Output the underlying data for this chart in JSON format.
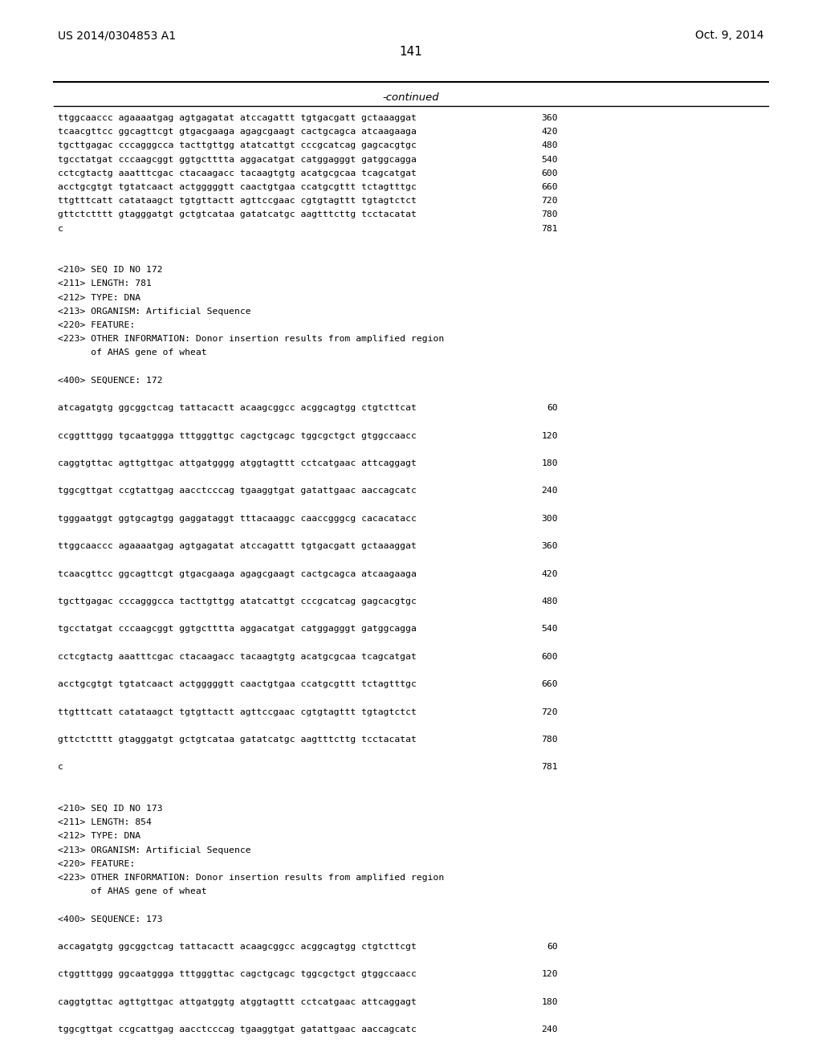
{
  "bg_color": "#ffffff",
  "header_left": "US 2014/0304853 A1",
  "header_right": "Oct. 9, 2014",
  "page_number": "141",
  "continued_text": "-continued",
  "lines": [
    {
      "text": "ttggcaaccc agaaaatgag agtgagatat atccagattt tgtgacgatt gctaaaggat",
      "num": "360",
      "type": "seq"
    },
    {
      "text": "tcaacgttcc ggcagttcgt gtgacgaaga agagcgaagt cactgcagca atcaagaaga",
      "num": "420",
      "type": "seq"
    },
    {
      "text": "tgcttgagac cccagggcca tacttgttgg atatcattgt cccgcatcag gagcacgtgc",
      "num": "480",
      "type": "seq"
    },
    {
      "text": "tgcctatgat cccaagcggt ggtgctttta aggacatgat catggagggt gatggcagga",
      "num": "540",
      "type": "seq"
    },
    {
      "text": "cctcgtactg aaatttcgac ctacaagacc tacaagtgtg acatgcgcaa tcagcatgat",
      "num": "600",
      "type": "seq"
    },
    {
      "text": "acctgcgtgt tgtatcaact actgggggtt caactgtgaa ccatgcgttt tctagtttgc",
      "num": "660",
      "type": "seq"
    },
    {
      "text": "ttgtttcatt catataagct tgtgttactt agttccgaac cgtgtagttt tgtagtctct",
      "num": "720",
      "type": "seq"
    },
    {
      "text": "gttctctttt gtagggatgt gctgtcataa gatatcatgc aagtttcttg tcctacatat",
      "num": "780",
      "type": "seq"
    },
    {
      "text": "c",
      "num": "781",
      "type": "seq"
    },
    {
      "text": "",
      "num": "",
      "type": "blank"
    },
    {
      "text": "",
      "num": "",
      "type": "blank"
    },
    {
      "text": "<210> SEQ ID NO 172",
      "num": "",
      "type": "meta"
    },
    {
      "text": "<211> LENGTH: 781",
      "num": "",
      "type": "meta"
    },
    {
      "text": "<212> TYPE: DNA",
      "num": "",
      "type": "meta"
    },
    {
      "text": "<213> ORGANISM: Artificial Sequence",
      "num": "",
      "type": "meta"
    },
    {
      "text": "<220> FEATURE:",
      "num": "",
      "type": "meta"
    },
    {
      "text": "<223> OTHER INFORMATION: Donor insertion results from amplified region",
      "num": "",
      "type": "meta"
    },
    {
      "text": "      of AHAS gene of wheat",
      "num": "",
      "type": "meta"
    },
    {
      "text": "",
      "num": "",
      "type": "blank"
    },
    {
      "text": "<400> SEQUENCE: 172",
      "num": "",
      "type": "meta"
    },
    {
      "text": "",
      "num": "",
      "type": "blank"
    },
    {
      "text": "atcagatgtg ggcggctcag tattacactt acaagcggcc acggcagtgg ctgtcttcat",
      "num": "60",
      "type": "seq"
    },
    {
      "text": "",
      "num": "",
      "type": "blank"
    },
    {
      "text": "ccggtttggg tgcaatggga tttgggttgc cagctgcagc tggcgctgct gtggccaacc",
      "num": "120",
      "type": "seq"
    },
    {
      "text": "",
      "num": "",
      "type": "blank"
    },
    {
      "text": "caggtgttac agttgttgac attgatgggg atggtagttt cctcatgaac attcaggagt",
      "num": "180",
      "type": "seq"
    },
    {
      "text": "",
      "num": "",
      "type": "blank"
    },
    {
      "text": "tggcgttgat ccgtattgag aacctcccag tgaaggtgat gatattgaac aaccagcatc",
      "num": "240",
      "type": "seq"
    },
    {
      "text": "",
      "num": "",
      "type": "blank"
    },
    {
      "text": "tgggaatggt ggtgcagtgg gaggataggt tttacaaggc caaccgggcg cacacatacc",
      "num": "300",
      "type": "seq"
    },
    {
      "text": "",
      "num": "",
      "type": "blank"
    },
    {
      "text": "ttggcaaccc agaaaatgag agtgagatat atccagattt tgtgacgatt gctaaaggat",
      "num": "360",
      "type": "seq"
    },
    {
      "text": "",
      "num": "",
      "type": "blank"
    },
    {
      "text": "tcaacgttcc ggcagttcgt gtgacgaaga agagcgaagt cactgcagca atcaagaaga",
      "num": "420",
      "type": "seq"
    },
    {
      "text": "",
      "num": "",
      "type": "blank"
    },
    {
      "text": "tgcttgagac cccagggcca tacttgttgg atatcattgt cccgcatcag gagcacgtgc",
      "num": "480",
      "type": "seq"
    },
    {
      "text": "",
      "num": "",
      "type": "blank"
    },
    {
      "text": "tgcctatgat cccaagcggt ggtgctttta aggacatgat catggagggt gatggcagga",
      "num": "540",
      "type": "seq"
    },
    {
      "text": "",
      "num": "",
      "type": "blank"
    },
    {
      "text": "cctcgtactg aaatttcgac ctacaagacc tacaagtgtg acatgcgcaa tcagcatgat",
      "num": "600",
      "type": "seq"
    },
    {
      "text": "",
      "num": "",
      "type": "blank"
    },
    {
      "text": "acctgcgtgt tgtatcaact actgggggtt caactgtgaa ccatgcgttt tctagtttgc",
      "num": "660",
      "type": "seq"
    },
    {
      "text": "",
      "num": "",
      "type": "blank"
    },
    {
      "text": "ttgtttcatt catataagct tgtgttactt agttccgaac cgtgtagttt tgtagtctct",
      "num": "720",
      "type": "seq"
    },
    {
      "text": "",
      "num": "",
      "type": "blank"
    },
    {
      "text": "gttctctttt gtagggatgt gctgtcataa gatatcatgc aagtttcttg tcctacatat",
      "num": "780",
      "type": "seq"
    },
    {
      "text": "",
      "num": "",
      "type": "blank"
    },
    {
      "text": "c",
      "num": "781",
      "type": "seq"
    },
    {
      "text": "",
      "num": "",
      "type": "blank"
    },
    {
      "text": "",
      "num": "",
      "type": "blank"
    },
    {
      "text": "<210> SEQ ID NO 173",
      "num": "",
      "type": "meta"
    },
    {
      "text": "<211> LENGTH: 854",
      "num": "",
      "type": "meta"
    },
    {
      "text": "<212> TYPE: DNA",
      "num": "",
      "type": "meta"
    },
    {
      "text": "<213> ORGANISM: Artificial Sequence",
      "num": "",
      "type": "meta"
    },
    {
      "text": "<220> FEATURE:",
      "num": "",
      "type": "meta"
    },
    {
      "text": "<223> OTHER INFORMATION: Donor insertion results from amplified region",
      "num": "",
      "type": "meta"
    },
    {
      "text": "      of AHAS gene of wheat",
      "num": "",
      "type": "meta"
    },
    {
      "text": "",
      "num": "",
      "type": "blank"
    },
    {
      "text": "<400> SEQUENCE: 173",
      "num": "",
      "type": "meta"
    },
    {
      "text": "",
      "num": "",
      "type": "blank"
    },
    {
      "text": "accagatgtg ggcggctcag tattacactt acaagcggcc acggcagtgg ctgtcttcgt",
      "num": "60",
      "type": "seq"
    },
    {
      "text": "",
      "num": "",
      "type": "blank"
    },
    {
      "text": "ctggtttggg ggcaatggga tttgggttac cagctgcagc tggcgctgct gtggccaacc",
      "num": "120",
      "type": "seq"
    },
    {
      "text": "",
      "num": "",
      "type": "blank"
    },
    {
      "text": "caggtgttac agttgttgac attgatggtg atggtagttt cctcatgaac attcaggagt",
      "num": "180",
      "type": "seq"
    },
    {
      "text": "",
      "num": "",
      "type": "blank"
    },
    {
      "text": "tggcgttgat ccgcattgag aacctcccag tgaaggtgat gatattgaac aaccagcatc",
      "num": "240",
      "type": "seq"
    }
  ]
}
